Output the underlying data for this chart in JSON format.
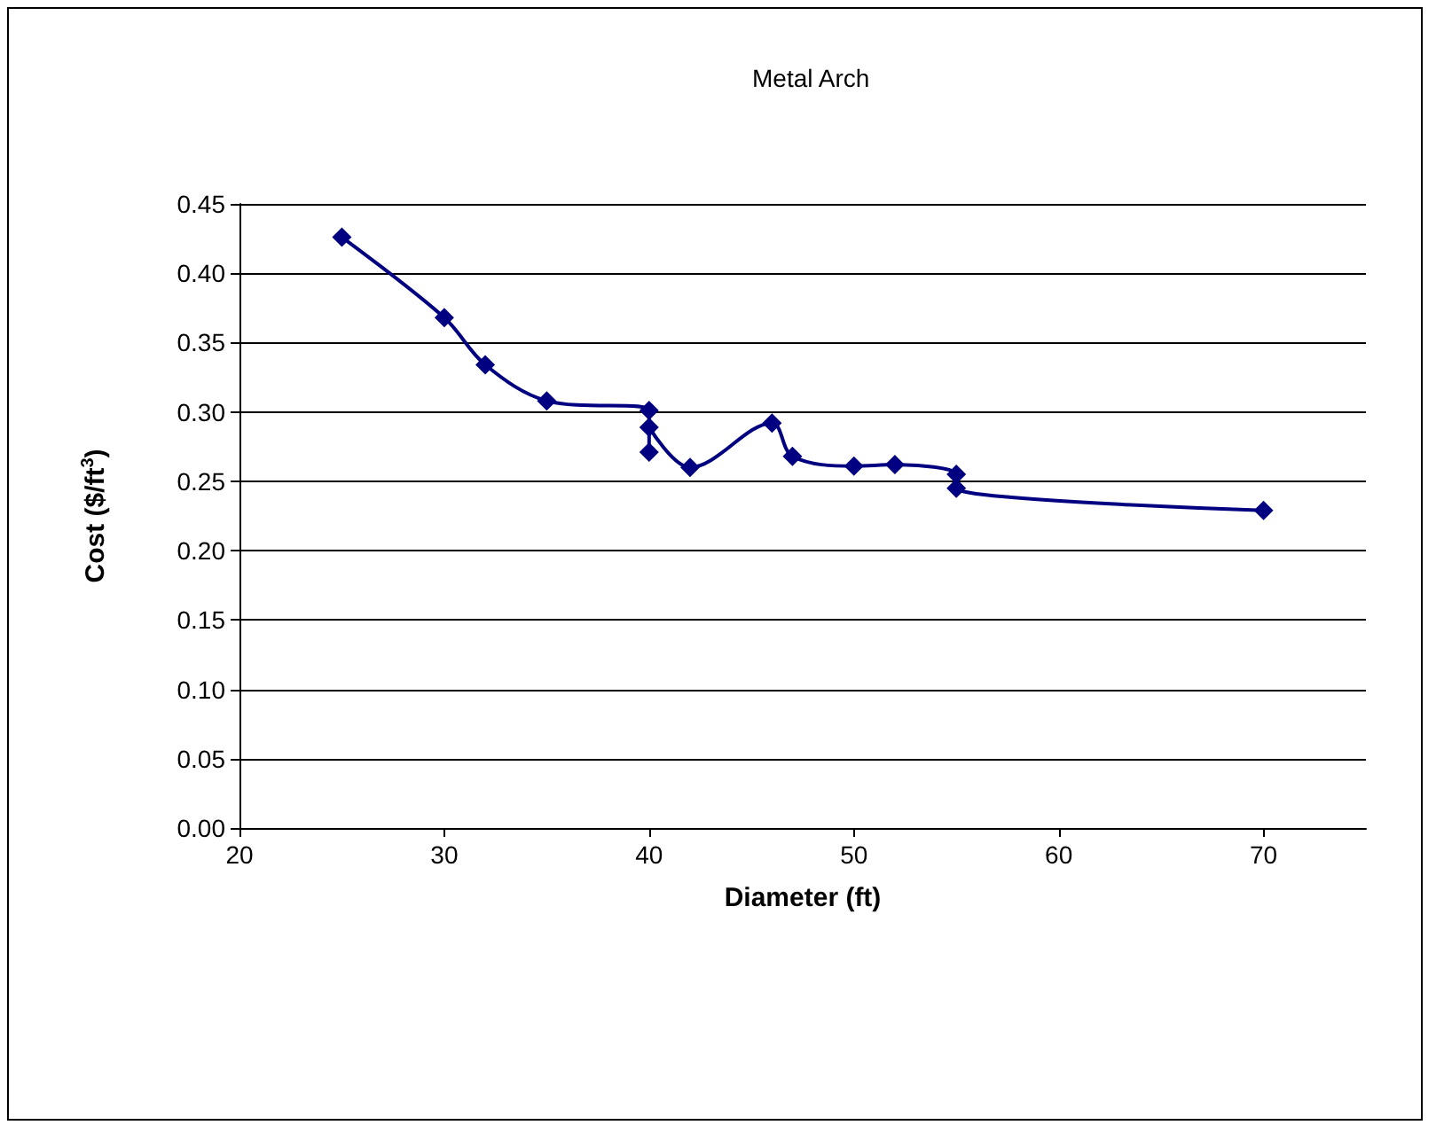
{
  "chart_data": {
    "type": "line",
    "title": "Metal Arch",
    "xlabel": "Diameter (ft)",
    "ylabel": "Cost ($/ft$^{3}$)",
    "x": [
      25,
      30,
      32,
      35,
      40,
      40,
      40,
      42,
      46,
      47,
      50,
      52,
      55,
      55,
      70
    ],
    "series": [
      {
        "color": "#000080",
        "values": [
          0.426,
          0.368,
          0.334,
          0.308,
          0.301,
          0.271,
          0.289,
          0.26,
          0.292,
          0.268,
          0.261,
          0.262,
          0.255,
          0.245,
          0.229
        ]
      }
    ],
    "xlim": [
      20,
      75
    ],
    "xticks": [
      20,
      30,
      40,
      50,
      60,
      70
    ],
    "ylim": [
      0,
      0.45
    ],
    "yticks": [
      {
        "value": 0,
        "label": "0.00"
      },
      {
        "value": 0.05,
        "label": "0.05"
      },
      {
        "value": 0.1,
        "label": "0.10"
      },
      {
        "value": 0.15,
        "label": "0.15"
      },
      {
        "value": 0.2,
        "label": "0.20"
      },
      {
        "value": 0.25,
        "label": "0.25"
      },
      {
        "value": 0.3,
        "label": "0.30"
      },
      {
        "value": 0.35,
        "label": "0.35"
      },
      {
        "value": 0.4,
        "label": "0.40"
      },
      {
        "value": 0.45,
        "label": "0.45"
      }
    ],
    "grid": "y",
    "marker": "diamond"
  }
}
